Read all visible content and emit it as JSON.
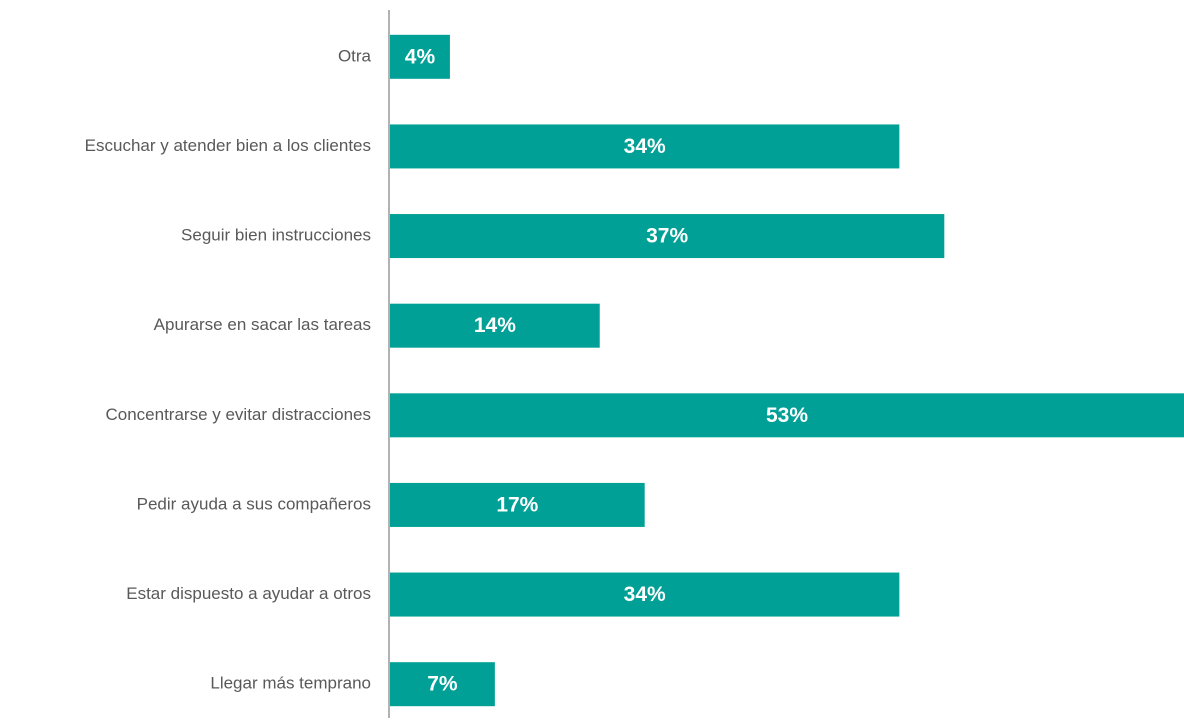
{
  "chart_data": {
    "type": "barh",
    "categories": [
      "Otra",
      "Escuchar y atender bien a los clientes",
      "Seguir bien instrucciones",
      "Apurarse en sacar las tareas",
      "Concentrarse y evitar distracciones",
      "Pedir ayuda a sus compañeros",
      "Estar dispuesto a ayudar a otros",
      "Llegar más temprano"
    ],
    "values": [
      4,
      34,
      37,
      14,
      53,
      17,
      34,
      7
    ],
    "value_labels": [
      "4%",
      "34%",
      "37%",
      "14%",
      "53%",
      "17%",
      "34%",
      "7%"
    ],
    "color": "#00a096",
    "xlim": [
      0,
      53
    ]
  }
}
